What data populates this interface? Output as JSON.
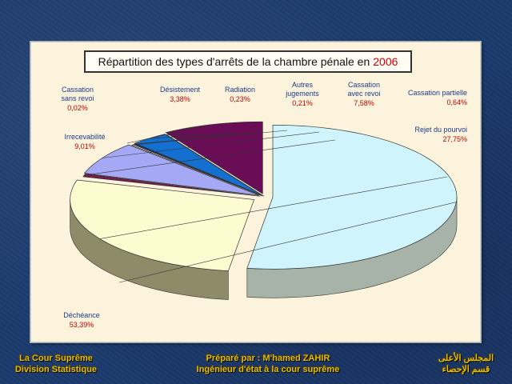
{
  "chart_data": {
    "type": "pie",
    "title_prefix": "Répartition des types d'arrêts de la chambre pénale en",
    "title_year": "2006",
    "slices": [
      {
        "name": "Déchéance",
        "name_line2": "",
        "value": 53.39,
        "label": "53,39%",
        "color": "#cff4fb"
      },
      {
        "name": "Rejet du pourvoi",
        "name_line2": "",
        "value": 27.75,
        "label": "27,75%",
        "color": "#fdfbd0"
      },
      {
        "name": "Cassation partielle",
        "name_line2": "",
        "value": 0.64,
        "label": "0,64%",
        "color": "#7b1a4e"
      },
      {
        "name": "Cassation",
        "name_line2": "avec revoi",
        "value": 7.58,
        "label": "7,58%",
        "color": "#a5a8f5"
      },
      {
        "name": "Autres",
        "name_line2": "jugements",
        "value": 0.21,
        "label": "0,21%",
        "color": "#ffffff"
      },
      {
        "name": "Radiation",
        "name_line2": "",
        "value": 0.23,
        "label": "0,23%",
        "color": "#1f2f6e"
      },
      {
        "name": "Désistement",
        "name_line2": "",
        "value": 3.38,
        "label": "3,38%",
        "color": "#1470d0"
      },
      {
        "name": "Cassation",
        "name_line2": "sans revoi",
        "value": 0.02,
        "label": "0,02%",
        "color": "#bfe0c0"
      },
      {
        "name": "Irrecevabilité",
        "name_line2": "",
        "value": 9.01,
        "label": "9,01%",
        "color": "#6a0c56"
      }
    ]
  },
  "footer": {
    "left_line1": "La Cour Suprême",
    "left_line2": "Division Statistique",
    "center_line1": "Préparé par : M'hamed ZAHIR",
    "center_line2": "Ingénieur d'état à la cour suprême",
    "right_line1": "المجلس الأعلى",
    "right_line2": "قسم الإحصاء"
  }
}
